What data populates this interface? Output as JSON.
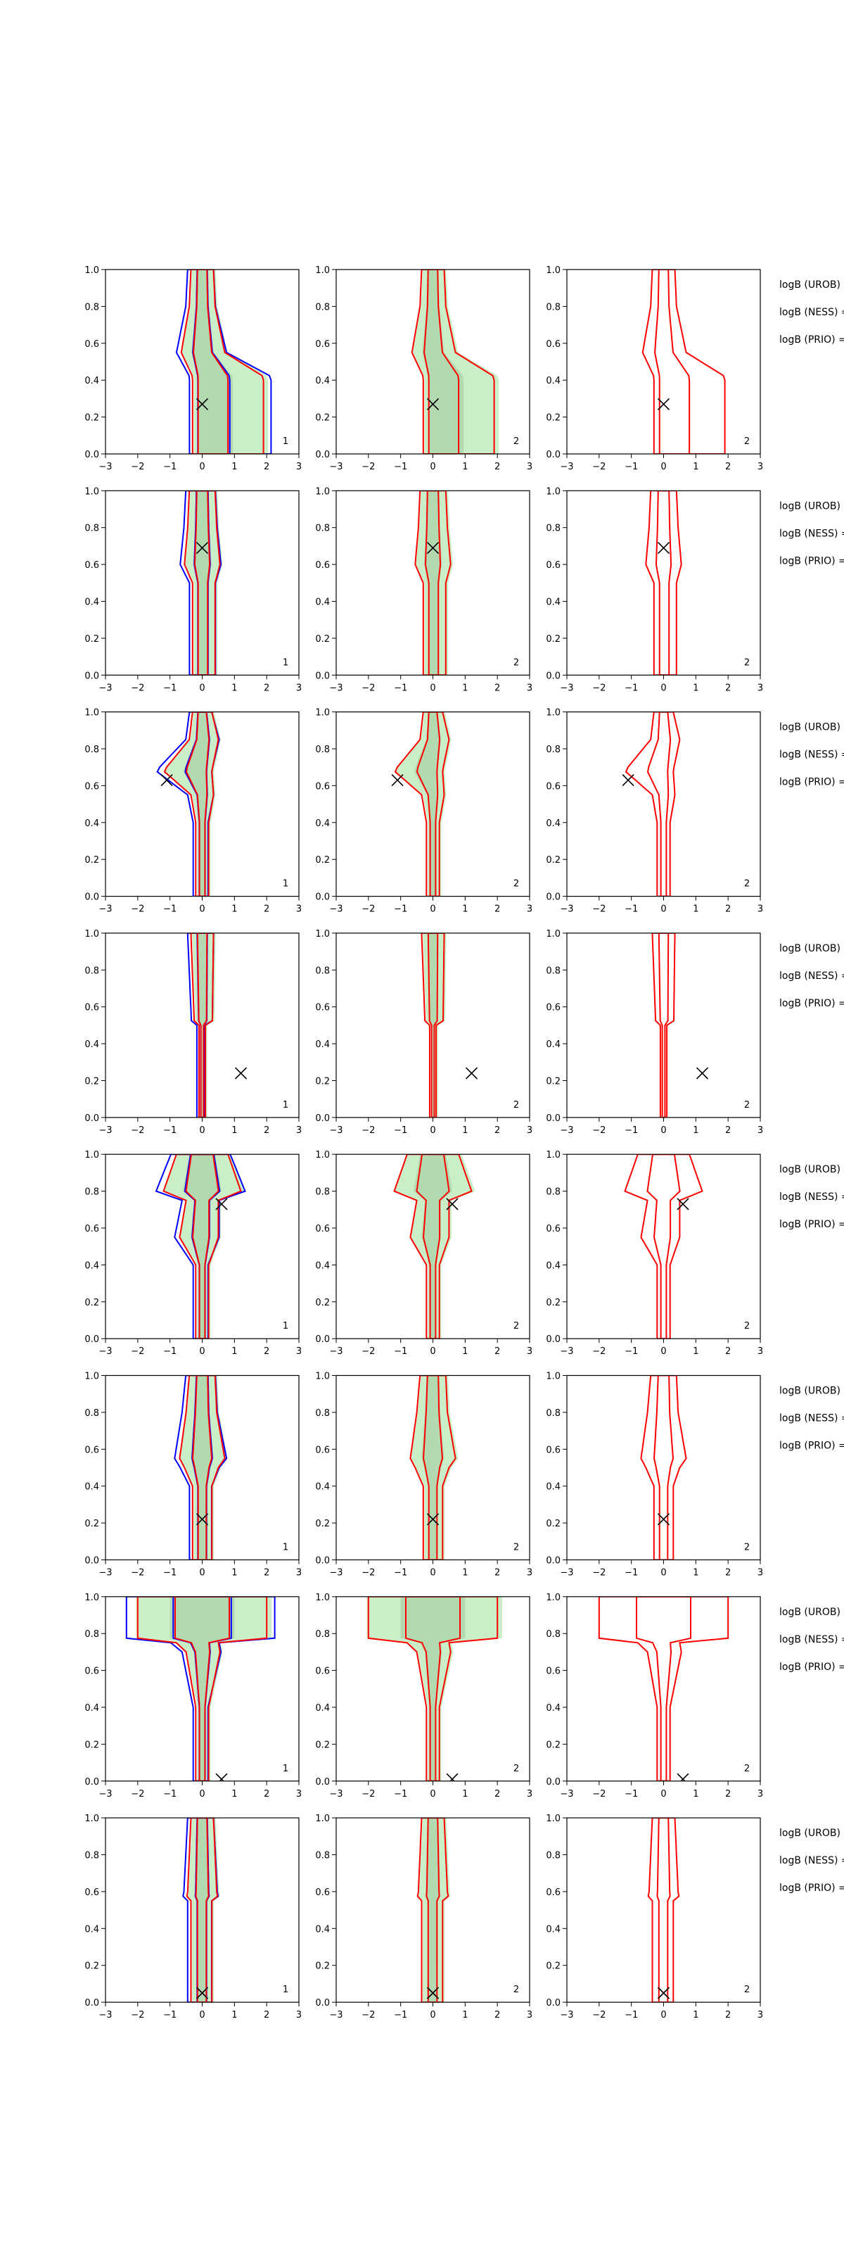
{
  "chart_data": {
    "type": "contour",
    "grid": true,
    "xlim": [
      -3,
      3
    ],
    "ylim": [
      0,
      1
    ],
    "xticks": [
      "−3",
      "−2",
      "−1",
      "0",
      "1",
      "2",
      "3"
    ],
    "yticks": [
      "0.0",
      "0.2",
      "0.4",
      "0.6",
      "0.8",
      "1.0"
    ],
    "colors": {
      "blue": "#0000ff",
      "red": "#ff0000",
      "fill": "#a6e3a1",
      "fill_dark": "#6e9a6e",
      "marker": "#000000"
    },
    "panel_tags": [
      "1",
      "2",
      "2"
    ],
    "row_labels": [
      "logB (UROB) =",
      "logB (NESS) =",
      "logB (PRIO) ="
    ],
    "rows": [
      {
        "marker": [
          0.0,
          0.27
        ],
        "shape": [
          [
            0.42,
            0.3,
            1.9
          ],
          [
            0.55,
            0.65,
            0.7
          ],
          [
            0.8,
            0.4,
            0.4
          ],
          [
            1.0,
            0.35,
            0.35
          ]
        ]
      },
      {
        "marker": [
          0.0,
          0.69
        ],
        "shape": [
          [
            0.5,
            0.3,
            0.4
          ],
          [
            0.6,
            0.55,
            0.55
          ],
          [
            0.8,
            0.45,
            0.45
          ],
          [
            1.0,
            0.4,
            0.4
          ]
        ]
      },
      {
        "marker": [
          -1.1,
          0.63
        ],
        "shape": [
          [
            0.4,
            0.2,
            0.2
          ],
          [
            0.55,
            0.35,
            0.35
          ],
          [
            0.68,
            1.2,
            0.3
          ],
          [
            0.85,
            0.4,
            0.5
          ],
          [
            1.0,
            0.3,
            0.3
          ]
        ]
      },
      {
        "marker": [
          1.2,
          0.24
        ],
        "shape": [
          [
            0.5,
            0.1,
            0.1
          ],
          [
            0.4,
            1.1,
            1.6
          ],
          [
            0.4,
            0.9,
            1.8
          ],
          [
            0.35,
            0.4,
            0.9
          ],
          [
            0.3,
            0.2,
            0.3
          ],
          [
            1.0,
            0.35,
            0.35
          ]
        ]
      },
      {
        "marker": [
          0.6,
          0.73
        ],
        "shape": [
          [
            0.4,
            0.2,
            0.2
          ],
          [
            0.55,
            0.7,
            0.5
          ],
          [
            0.75,
            0.5,
            0.5
          ],
          [
            0.8,
            1.2,
            1.2
          ],
          [
            1.0,
            0.8,
            0.8
          ]
        ]
      },
      {
        "marker": [
          0.0,
          0.22
        ],
        "shape": [
          [
            0.4,
            0.3,
            0.3
          ],
          [
            0.5,
            0.55,
            0.5
          ],
          [
            0.55,
            0.7,
            0.7
          ],
          [
            0.8,
            0.5,
            0.45
          ],
          [
            1.0,
            0.4,
            0.4
          ]
        ]
      },
      {
        "marker": [
          0.6,
          0.01
        ],
        "shape": [
          [
            0.4,
            0.2,
            0.2
          ],
          [
            0.7,
            0.5,
            0.55
          ],
          [
            0.75,
            0.8,
            0.5
          ],
          [
            0.45,
            3.0,
            1.6
          ],
          [
            0.25,
            2.0,
            2.0
          ]
        ]
      },
      {
        "marker": [
          0.0,
          0.05
        ],
        "shape": [
          [
            0.55,
            0.35,
            0.3
          ],
          [
            0.5,
            0.6,
            0.55
          ],
          [
            0.55,
            0.5,
            0.5
          ],
          [
            0.6,
            0.45,
            0.45
          ],
          [
            1.0,
            0.35,
            0.35
          ]
        ]
      }
    ]
  }
}
